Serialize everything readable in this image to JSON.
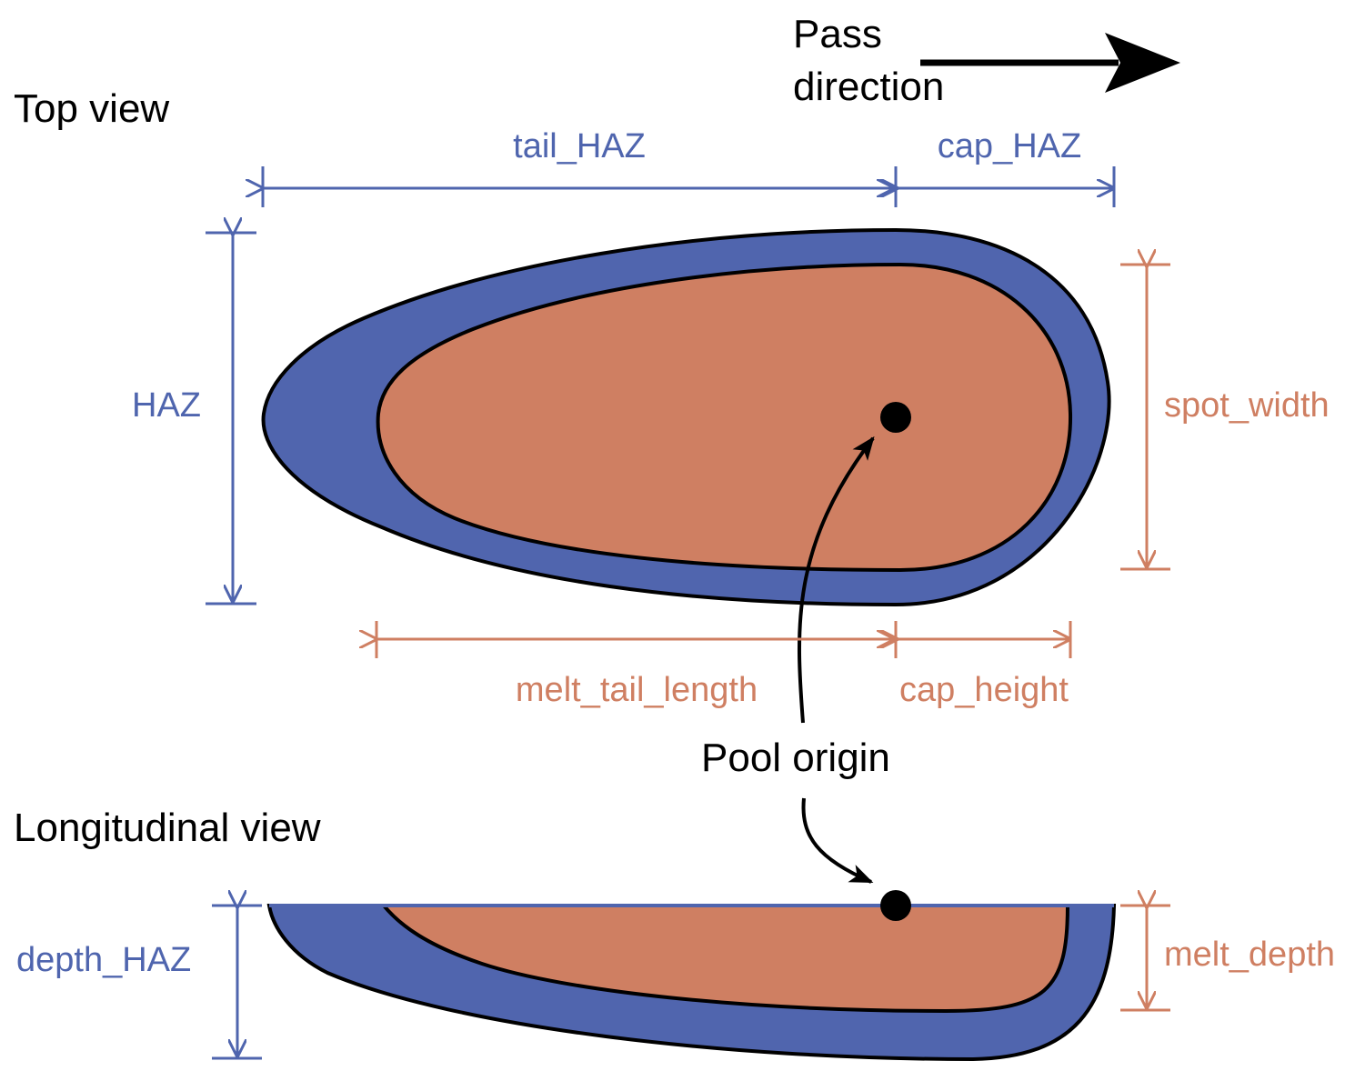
{
  "titles": {
    "top_view": "Top view",
    "longitudinal_view": "Longitudinal view"
  },
  "pass_direction": {
    "line1": "Pass",
    "line2": "direction"
  },
  "pool_origin": "Pool origin",
  "dimensions": {
    "tail_HAZ": "tail_HAZ",
    "cap_HAZ": "cap_HAZ",
    "HAZ": "HAZ",
    "spot_width": "spot_width",
    "melt_tail_length": "melt_tail_length",
    "cap_height": "cap_height",
    "depth_HAZ": "depth_HAZ",
    "melt_depth": "melt_depth"
  },
  "colors": {
    "haz": "#5065ae",
    "melt": "#cf7f62",
    "haz_text": "#4f65ae",
    "melt_text": "#cf7f62"
  }
}
